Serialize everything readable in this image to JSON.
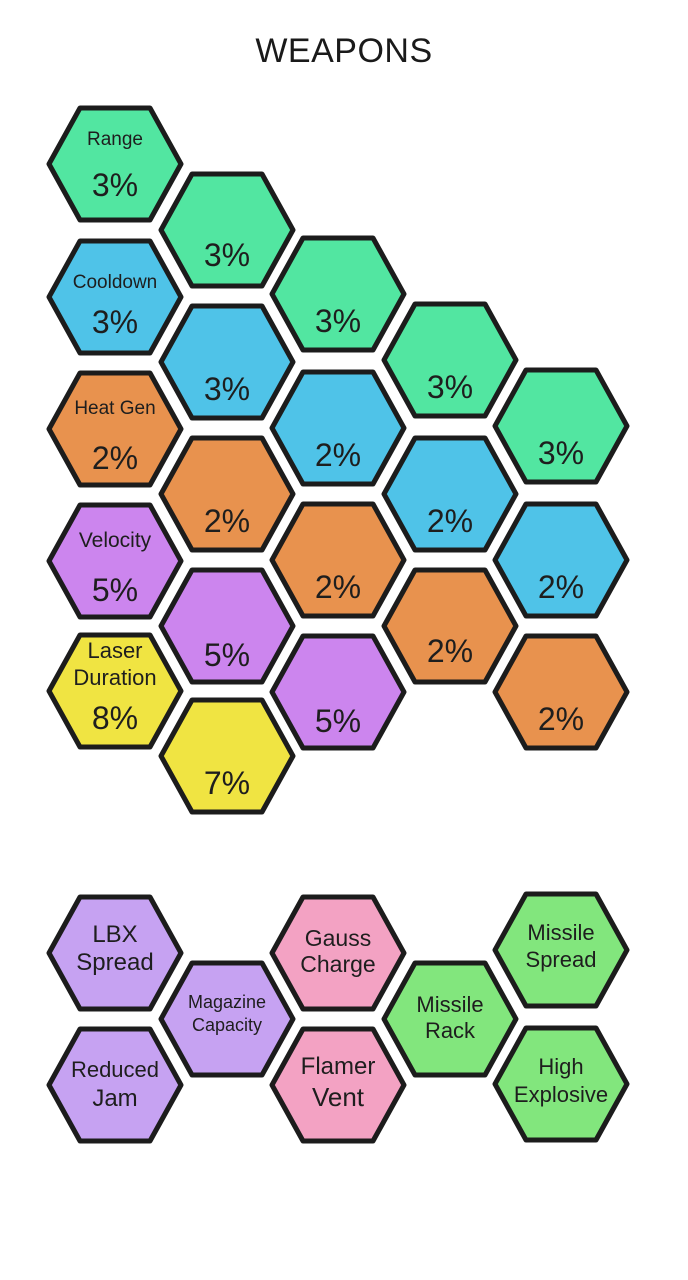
{
  "screen": {
    "title": "WEAPONS"
  },
  "colors": {
    "green": "#52e6a1",
    "blue": "#4fc3e8",
    "orange": "#e8924e",
    "purple": "#cc85ee",
    "yellow": "#f0e442",
    "lavender": "#c6a2f2",
    "pink": "#f3a2c3",
    "lightgreen": "#82e67d",
    "outline": "#1c1c1c"
  },
  "upgrade_grid": {
    "range": {
      "label": "Range",
      "values": [
        "3%",
        "3%",
        "3%",
        "3%",
        "3%"
      ]
    },
    "cooldown": {
      "label": "Cooldown",
      "values": [
        "3%",
        "3%",
        "2%",
        "2%",
        "2%"
      ]
    },
    "heat_gen": {
      "label": "Heat Gen",
      "values": [
        "2%",
        "2%",
        "2%",
        "2%",
        "2%"
      ]
    },
    "velocity": {
      "label": "Velocity",
      "values": [
        "5%",
        "5%",
        "5%"
      ]
    },
    "laser_duration": {
      "label_line1": "Laser",
      "label_line2": "Duration",
      "values": [
        "8%",
        "7%"
      ]
    }
  },
  "modules": {
    "lbx_spread": [
      "LBX",
      "Spread"
    ],
    "reduced_jam": [
      "Reduced",
      "Jam"
    ],
    "magazine_capacity": [
      "Magazine",
      "Capacity"
    ],
    "gauss_charge": [
      "Gauss",
      "Charge"
    ],
    "flamer_vent": [
      "Flamer",
      "Vent"
    ],
    "missile_rack": [
      "Missile",
      "Rack"
    ],
    "missile_spread": [
      "Missile",
      "Spread"
    ],
    "high_explosive": [
      "High",
      "Explosive"
    ]
  }
}
